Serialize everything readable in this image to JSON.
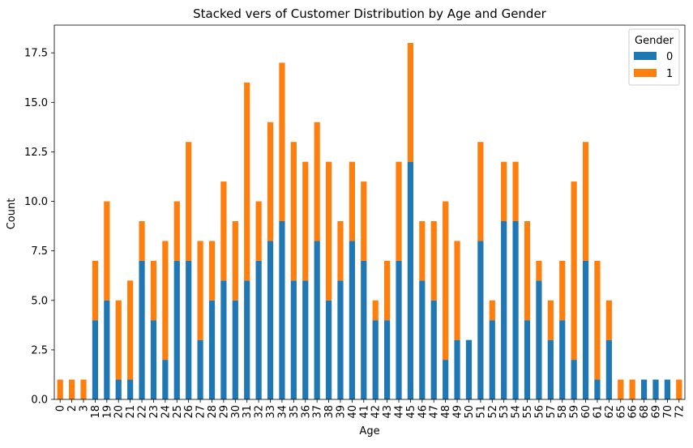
{
  "chart_data": {
    "type": "bar",
    "stacked": true,
    "title": "Stacked vers of Customer Distribution by Age and Gender",
    "xlabel": "Age",
    "ylabel": "Count",
    "ylim": [
      0,
      18.9
    ],
    "yticks": [
      "0.0",
      "2.5",
      "5.0",
      "7.5",
      "10.0",
      "12.5",
      "15.0",
      "17.5"
    ],
    "grid": false,
    "legend_position": "top-right",
    "legend_title": "Gender",
    "categories": [
      "0",
      "2",
      "3",
      "18",
      "19",
      "20",
      "21",
      "22",
      "23",
      "24",
      "25",
      "26",
      "27",
      "28",
      "29",
      "30",
      "31",
      "32",
      "33",
      "34",
      "35",
      "36",
      "37",
      "38",
      "39",
      "40",
      "41",
      "42",
      "43",
      "44",
      "45",
      "46",
      "47",
      "48",
      "49",
      "50",
      "51",
      "52",
      "53",
      "54",
      "55",
      "56",
      "57",
      "58",
      "59",
      "60",
      "61",
      "62",
      "65",
      "66",
      "68",
      "69",
      "70",
      "72"
    ],
    "series": [
      {
        "name": "0",
        "color": "#1f77b4",
        "values": [
          0,
          0,
          0,
          4,
          5,
          1,
          1,
          7,
          4,
          2,
          7,
          7,
          3,
          5,
          6,
          5,
          6,
          7,
          8,
          9,
          6,
          6,
          8,
          5,
          6,
          8,
          7,
          4,
          4,
          7,
          12,
          6,
          5,
          2,
          3,
          3,
          8,
          4,
          9,
          9,
          4,
          6,
          3,
          4,
          2,
          7,
          1,
          3,
          0,
          0,
          1,
          1,
          1,
          0
        ]
      },
      {
        "name": "1",
        "color": "#ff7f0e",
        "values": [
          1,
          1,
          1,
          3,
          5,
          4,
          5,
          2,
          3,
          6,
          3,
          6,
          5,
          3,
          5,
          4,
          10,
          3,
          6,
          8,
          7,
          6,
          6,
          7,
          3,
          4,
          4,
          1,
          3,
          5,
          6,
          3,
          4,
          8,
          5,
          0,
          5,
          1,
          3,
          3,
          5,
          1,
          2,
          3,
          9,
          6,
          6,
          2,
          1,
          1,
          0,
          0,
          0,
          1
        ]
      }
    ]
  }
}
